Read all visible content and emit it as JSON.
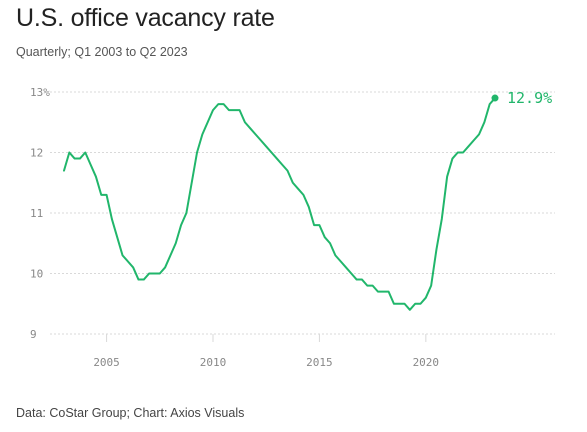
{
  "header": {
    "title": "U.S. office vacancy rate",
    "subtitle": "Quarterly; Q1 2003 to Q2 2023"
  },
  "footer": {
    "source": "Data: CoStar Group; Chart: Axios Visuals"
  },
  "colors": {
    "line": "#21b66b",
    "grid": "#d9d9d9",
    "tick": "#888888"
  },
  "chart_data": {
    "type": "line",
    "title": "U.S. office vacancy rate",
    "subtitle": "Quarterly; Q1 2003 to Q2 2023",
    "xlabel": "",
    "ylabel": "",
    "grid": true,
    "xlim": [
      2003,
      2023.25
    ],
    "ylim": [
      9,
      13
    ],
    "y_ticks": [
      {
        "value": 9,
        "label": "9"
      },
      {
        "value": 10,
        "label": "10"
      },
      {
        "value": 11,
        "label": "11"
      },
      {
        "value": 12,
        "label": "12"
      },
      {
        "value": 13,
        "label": "13%"
      }
    ],
    "x_ticks": [
      {
        "value": 2005,
        "label": "2005"
      },
      {
        "value": 2010,
        "label": "2010"
      },
      {
        "value": 2015,
        "label": "2015"
      },
      {
        "value": 2020,
        "label": "2020"
      }
    ],
    "end_label": "12.9%",
    "series": [
      {
        "x": [
          2003.0,
          2003.25,
          2003.5,
          2003.75,
          2004.0,
          2004.25,
          2004.5,
          2004.75,
          2005.0,
          2005.25,
          2005.5,
          2005.75,
          2006.0,
          2006.25,
          2006.5,
          2006.75,
          2007.0,
          2007.25,
          2007.5,
          2007.75,
          2008.0,
          2008.25,
          2008.5,
          2008.75,
          2009.0,
          2009.25,
          2009.5,
          2009.75,
          2010.0,
          2010.25,
          2010.5,
          2010.75,
          2011.0,
          2011.25,
          2011.5,
          2011.75,
          2012.0,
          2012.25,
          2012.5,
          2012.75,
          2013.0,
          2013.25,
          2013.5,
          2013.75,
          2014.0,
          2014.25,
          2014.5,
          2014.75,
          2015.0,
          2015.25,
          2015.5,
          2015.75,
          2016.0,
          2016.25,
          2016.5,
          2016.75,
          2017.0,
          2017.25,
          2017.5,
          2017.75,
          2018.0,
          2018.25,
          2018.5,
          2018.75,
          2019.0,
          2019.25,
          2019.5,
          2019.75,
          2020.0,
          2020.25,
          2020.5,
          2020.75,
          2021.0,
          2021.25,
          2021.5,
          2021.75,
          2022.0,
          2022.25,
          2022.5,
          2022.75,
          2023.0,
          2023.25
        ],
        "values": [
          11.7,
          12.0,
          11.9,
          11.9,
          12.0,
          11.8,
          11.6,
          11.3,
          11.3,
          10.9,
          10.6,
          10.3,
          10.2,
          10.1,
          9.9,
          9.9,
          10.0,
          10.0,
          10.0,
          10.1,
          10.3,
          10.5,
          10.8,
          11.0,
          11.5,
          12.0,
          12.3,
          12.5,
          12.7,
          12.8,
          12.8,
          12.7,
          12.7,
          12.7,
          12.5,
          12.4,
          12.3,
          12.2,
          12.1,
          12.0,
          11.9,
          11.8,
          11.7,
          11.5,
          11.4,
          11.3,
          11.1,
          10.8,
          10.8,
          10.6,
          10.5,
          10.3,
          10.2,
          10.1,
          10.0,
          9.9,
          9.9,
          9.8,
          9.8,
          9.7,
          9.7,
          9.7,
          9.5,
          9.5,
          9.5,
          9.4,
          9.5,
          9.5,
          9.6,
          9.8,
          10.4,
          10.9,
          11.6,
          11.9,
          12.0,
          12.0,
          12.1,
          12.2,
          12.3,
          12.5,
          12.8,
          12.9
        ]
      }
    ]
  }
}
